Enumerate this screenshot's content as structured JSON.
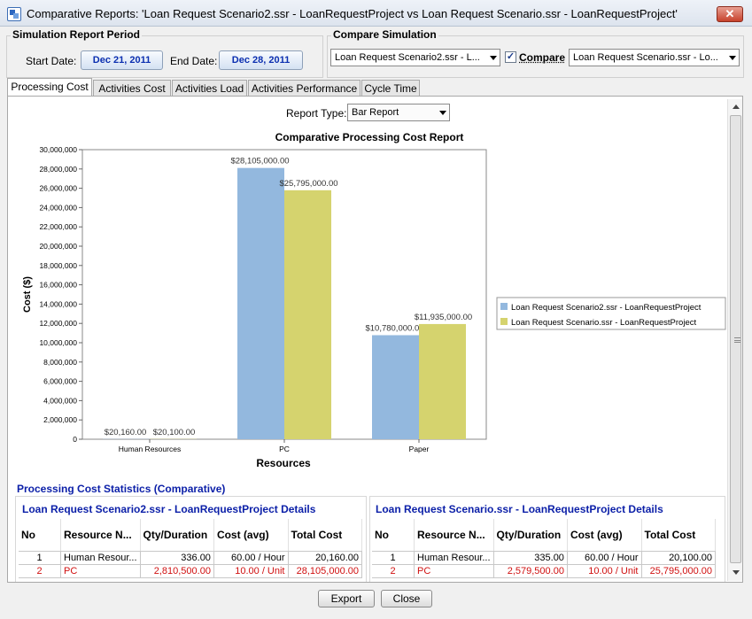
{
  "window": {
    "title": "Comparative Reports: 'Loan Request Scenario2.ssr - LoanRequestProject vs Loan Request Scenario.ssr - LoanRequestProject'",
    "close_label": "✕"
  },
  "period": {
    "title": "Simulation Report Period",
    "start_label": "Start Date:",
    "start_value": "Dec 21, 2011",
    "end_label": "End Date:",
    "end_value": "Dec 28, 2011"
  },
  "compare": {
    "title": "Compare Simulation",
    "left_selected": "Loan Request Scenario2.ssr - L...",
    "checkbox_checked": true,
    "checkbox_label": "Compare",
    "right_selected": "Loan Request Scenario.ssr - Lo..."
  },
  "tabs": [
    {
      "label": "Processing Cost",
      "active": true
    },
    {
      "label": "Activities Cost",
      "active": false
    },
    {
      "label": "Activities Load",
      "active": false
    },
    {
      "label": "Activities Performance",
      "active": false
    },
    {
      "label": "Cycle Time",
      "active": false
    }
  ],
  "report_type": {
    "label": "Report Type:",
    "selected": "Bar Report"
  },
  "chart_data": {
    "type": "bar",
    "title": "Comparative Processing Cost Report",
    "xlabel": "Resources",
    "ylabel": "Cost ($)",
    "ylim": [
      0,
      30000000
    ],
    "yticks": [
      "0",
      "2,000,000",
      "4,000,000",
      "6,000,000",
      "8,000,000",
      "10,000,000",
      "12,000,000",
      "14,000,000",
      "16,000,000",
      "18,000,000",
      "20,000,000",
      "22,000,000",
      "24,000,000",
      "26,000,000",
      "28,000,000",
      "30,000,000"
    ],
    "categories": [
      "Human Resources",
      "PC",
      "Paper"
    ],
    "series": [
      {
        "name": "Loan Request Scenario2.ssr - LoanRequestProject",
        "color": "#93b8de",
        "values": [
          20160,
          28105000,
          10780000
        ],
        "labels": [
          "$20,160.00",
          "$28,105,000.00",
          "$10,780,000.00"
        ]
      },
      {
        "name": "Loan Request Scenario.ssr - LoanRequestProject",
        "color": "#d5d36e",
        "values": [
          20100,
          25795000,
          11935000
        ],
        "labels": [
          "$20,100.00",
          "$25,795,000.00",
          "$11,935,000.00"
        ]
      }
    ],
    "grid": false,
    "legend_position": "right"
  },
  "stats": {
    "title": "Processing Cost Statistics (Comparative)",
    "columns": [
      "No",
      "Resource N...",
      "Qty/Duration",
      "Cost (avg)",
      "Total Cost"
    ],
    "left": {
      "title": "Loan Request Scenario2.ssr - LoanRequestProject Details",
      "rows": [
        {
          "no": "1",
          "resource": "Human Resour...",
          "qty": "336.00",
          "cost": "60.00 / Hour",
          "total": "20,160.00"
        },
        {
          "no": "2",
          "resource": "PC",
          "qty": "2,810,500.00",
          "cost": "10.00 / Unit",
          "total": "28,105,000.00"
        }
      ]
    },
    "right": {
      "title": "Loan Request Scenario.ssr - LoanRequestProject Details",
      "rows": [
        {
          "no": "1",
          "resource": "Human Resour...",
          "qty": "335.00",
          "cost": "60.00 / Hour",
          "total": "20,100.00"
        },
        {
          "no": "2",
          "resource": "PC",
          "qty": "2,579,500.00",
          "cost": "10.00 / Unit",
          "total": "25,795,000.00"
        }
      ]
    }
  },
  "buttons": {
    "export": "Export",
    "close": "Close"
  }
}
